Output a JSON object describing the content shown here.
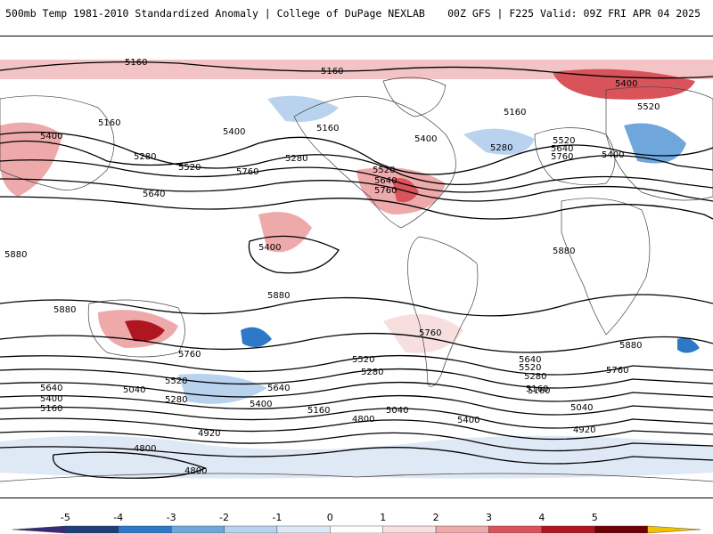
{
  "header": {
    "title_left": "500mb Temp 1981-2010 Standardized Anomaly | College of DuPage NEXLAB",
    "title_right": "00Z GFS | F225 Valid: 09Z FRI APR 04 2025"
  },
  "colorbar": {
    "labels": [
      "-5",
      "-4",
      "-3",
      "-2",
      "-1",
      "0",
      "1",
      "2",
      "3",
      "4",
      "5"
    ],
    "colors": [
      "#3b2a7a",
      "#1f3f7a",
      "#2e79c7",
      "#6fa7dd",
      "#b9d3ee",
      "#dfe9f5",
      "#ffffff",
      "#f7dfe0",
      "#eea9ab",
      "#d9545a",
      "#b01620",
      "#6e0008",
      "#f2c200"
    ]
  },
  "contour_labels": [
    "5160",
    "5160",
    "5400",
    "5160",
    "5400",
    "5280",
    "5520",
    "5760",
    "5640",
    "5400",
    "5160",
    "5280",
    "5400",
    "5520",
    "5640",
    "5760",
    "5160",
    "5280",
    "5520",
    "5640",
    "5760",
    "5400",
    "5520",
    "5400",
    "5880",
    "5880",
    "5880",
    "5760",
    "5760",
    "5880",
    "5880",
    "5640",
    "5400",
    "5160",
    "5040",
    "5520",
    "5280",
    "5640",
    "5400",
    "5520",
    "5280",
    "5160",
    "5040",
    "5160",
    "4800",
    "4920",
    "4800",
    "4800",
    "5640",
    "5520",
    "5280",
    "5160",
    "5400",
    "5040",
    "4920",
    "5760"
  ]
}
